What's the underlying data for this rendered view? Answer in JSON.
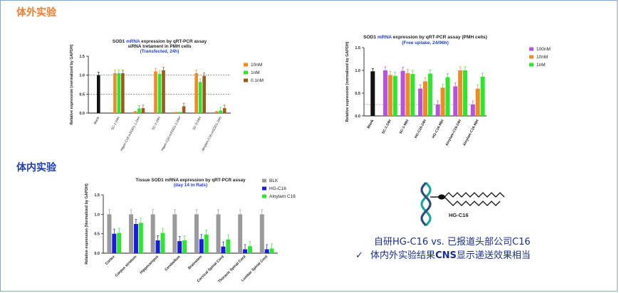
{
  "sections": {
    "in_vitro": "体外实验",
    "in_vivo": "体内实验"
  },
  "chart_data": [
    {
      "id": "chart1",
      "type": "bar",
      "title_parts": [
        {
          "text": "SOD1 ",
          "color": "#222222"
        },
        {
          "text": "mRNA",
          "color": "#1f3fd0"
        },
        {
          "text": " expression by qRT-PCR assay",
          "color": "#222222"
        }
      ],
      "subtitle": "siRNA tretament in PMH cells",
      "subtitle2": "(Transfected, 24h)",
      "ylabel": "Relative expression (normalized by GAPDH)",
      "ylim": [
        0,
        1.5
      ],
      "yticks": [
        "0.0",
        "0.5",
        "1.0",
        "1.5"
      ],
      "reference_lines": [
        1.0,
        0.5
      ],
      "categories": [
        "Blank",
        "SC-1-24H",
        "Higen-C16-mSOD1-1-24H",
        "SC-2-24H",
        "Higen-C16-mSOD1-2-24H",
        "SC-3-24H",
        "Alnylam-C16-mSOD1-24H"
      ],
      "series": [
        {
          "name": "10nM",
          "color": "#f28a24",
          "values": [
            null,
            1.05,
            0.05,
            1.1,
            0.03,
            1.05,
            0.05
          ]
        },
        {
          "name": "1nM",
          "color": "#2ee62e",
          "values": [
            null,
            1.05,
            0.12,
            1.03,
            0.03,
            0.82,
            0.07
          ]
        },
        {
          "name": "0.1nM",
          "color": "#9a5b1c",
          "values": [
            null,
            1.05,
            0.13,
            1.13,
            0.18,
            0.98,
            0.13
          ]
        }
      ],
      "blank": {
        "value": 1.0,
        "color": "#111111"
      }
    },
    {
      "id": "chart2",
      "type": "bar",
      "title_parts": [
        {
          "text": "SOD1 ",
          "color": "#222222"
        },
        {
          "text": "mRNA",
          "color": "#1f3fd0"
        },
        {
          "text": " expression by qRT-PCR assay (PMH cells)",
          "color": "#222222"
        }
      ],
      "subtitle": "(Free uptake, 24/96h)",
      "ylabel": "Relative expression (normalized by GAPDH)",
      "ylim": [
        0,
        1.5
      ],
      "yticks": [
        "0.0",
        "0.5",
        "1.0",
        "1.5"
      ],
      "reference_lines": [
        0.25
      ],
      "categories": [
        "Blank",
        "SC-1-24H",
        "SC-1-96H",
        "HG-C16-24H",
        "HG-C16-96H",
        "Alnylam-C16-24H",
        "Alnylam-C16-96H"
      ],
      "series": [
        {
          "name": "100nM",
          "color": "#b553e0",
          "values": [
            null,
            1.0,
            0.99,
            0.6,
            0.25,
            0.65,
            0.25
          ]
        },
        {
          "name": "10nM",
          "color": "#f28a24",
          "values": [
            null,
            0.9,
            0.94,
            0.76,
            0.62,
            1.0,
            0.6
          ]
        },
        {
          "name": "1nM",
          "color": "#2ee62e",
          "values": [
            null,
            0.88,
            0.92,
            0.93,
            0.85,
            1.0,
            0.86
          ]
        }
      ],
      "blank": {
        "value": 0.98,
        "color": "#111111"
      }
    },
    {
      "id": "chart3",
      "type": "bar",
      "title_parts": [
        {
          "text": "Tissue SOD1 mRNA expression by qRT-PCR assay",
          "color": "#222222"
        }
      ],
      "subtitle": "(day 14 in Rats)",
      "ylabel": "Relative expression (Normalized by GAPDH)",
      "ylim": [
        0,
        1.5
      ],
      "yticks": [
        "0.0",
        "0.5",
        "1.0",
        "1.5"
      ],
      "categories": [
        "Cortex",
        "Corpus striatum",
        "Hippocampus",
        "Cerebellum",
        "Brainstem",
        "Cervical Spinal Cord",
        "Thoracic Spinal Cord",
        "Lumbar Spinal Cord"
      ],
      "series": [
        {
          "name": "BLK",
          "color": "#9a9a9a",
          "values": [
            1.0,
            1.0,
            1.0,
            1.0,
            1.0,
            1.0,
            1.0,
            1.0
          ]
        },
        {
          "name": "HG-C16",
          "color": "#1a1ae0",
          "values": [
            0.5,
            0.75,
            0.33,
            0.31,
            0.36,
            0.17,
            0.1,
            0.1
          ]
        },
        {
          "name": "Alnylam C16",
          "color": "#2ee62e",
          "values": [
            0.52,
            0.78,
            0.52,
            0.33,
            0.48,
            0.35,
            0.18,
            0.12
          ]
        }
      ]
    }
  ],
  "molecule": {
    "label": "HG-C16",
    "helix_colors": [
      "#1aa89a",
      "#2d4e7a"
    ]
  },
  "claims": {
    "line1": "自研HG-C16 vs. 已报道头部公司C16",
    "line2_check": "✓",
    "line2_pre": "体内外实验结果",
    "line2_bold": "CNS",
    "line2_post": "显示递送效果相当"
  }
}
